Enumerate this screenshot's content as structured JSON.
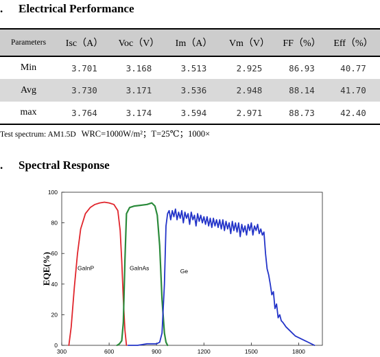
{
  "sections": {
    "electrical": {
      "bullet": ".",
      "title": "Electrical Performance"
    },
    "spectral": {
      "bullet": ".",
      "title": "Spectral Response"
    }
  },
  "table": {
    "headers": [
      "Parameters",
      "Isc（A）",
      "Voc（V）",
      "Im（A）",
      "Vm（V）",
      "FF（%）",
      "Eff（%）"
    ],
    "rows": [
      {
        "label": "Min",
        "values": [
          "3.701",
          "3.168",
          "3.513",
          "2.925",
          "86.93",
          "40.77"
        ]
      },
      {
        "label": "Avg",
        "values": [
          "3.730",
          "3.171",
          "3.536",
          "2.948",
          "88.14",
          "41.70"
        ]
      },
      {
        "label": "max",
        "values": [
          "3.764",
          "3.174",
          "3.594",
          "2.971",
          "88.73",
          "42.40"
        ]
      }
    ]
  },
  "note": {
    "spectrum": "Test spectrum: AM1.5D",
    "conditions": "WRC=1000W/m²；T=25℃；1000×"
  },
  "chart_data": {
    "type": "line",
    "title": "",
    "xlabel": "",
    "ylabel": "EQE(%)",
    "xlim": [
      300,
      1950
    ],
    "ylim": [
      0,
      100
    ],
    "xticks": [
      300,
      600,
      900,
      1200,
      1500,
      1800
    ],
    "yticks": [
      0,
      20,
      40,
      60,
      80,
      100
    ],
    "grid": false,
    "series": [
      {
        "name": "GaInP",
        "color": "#e0242b",
        "label_at": [
          400,
          49
        ],
        "x": [
          345,
          360,
          380,
          400,
          420,
          450,
          480,
          510,
          540,
          570,
          600,
          630,
          655,
          670,
          680,
          690,
          700,
          710
        ],
        "y": [
          0,
          12,
          38,
          60,
          76,
          86,
          90,
          92,
          93,
          93.5,
          93,
          92,
          88,
          75,
          55,
          30,
          10,
          0
        ]
      },
      {
        "name": "GaInAs",
        "color": "#2a8a3a",
        "label_at": [
          730,
          49
        ],
        "x": [
          650,
          665,
          680,
          690,
          700,
          710,
          730,
          760,
          800,
          840,
          870,
          890,
          905,
          920,
          935,
          950,
          960,
          970
        ],
        "y": [
          0,
          1,
          3,
          15,
          55,
          86,
          90,
          91,
          91.5,
          92,
          93,
          91,
          85,
          65,
          30,
          8,
          2,
          0
        ],
        "stroke_width": 2.2
      },
      {
        "name": "Ge",
        "color": "#2233c8",
        "label_at": [
          1050,
          47
        ],
        "x": [
          720,
          780,
          840,
          900,
          920,
          935,
          950,
          960,
          970,
          980,
          990,
          1000,
          1010,
          1020,
          1030,
          1040,
          1050,
          1060,
          1070,
          1080,
          1090,
          1100,
          1110,
          1120,
          1130,
          1140,
          1150,
          1160,
          1170,
          1180,
          1190,
          1200,
          1210,
          1220,
          1230,
          1240,
          1250,
          1260,
          1270,
          1280,
          1290,
          1300,
          1310,
          1320,
          1330,
          1340,
          1350,
          1360,
          1370,
          1380,
          1390,
          1400,
          1410,
          1420,
          1430,
          1440,
          1450,
          1460,
          1470,
          1480,
          1490,
          1500,
          1510,
          1520,
          1530,
          1540,
          1550,
          1560,
          1570,
          1580,
          1590,
          1600,
          1610,
          1620,
          1630,
          1640,
          1650,
          1660,
          1670,
          1680,
          1690,
          1700,
          1720,
          1740,
          1760,
          1780,
          1800,
          1820,
          1840,
          1860,
          1880,
          1900
        ],
        "y": [
          0,
          0,
          1,
          1,
          2,
          8,
          40,
          78,
          86,
          88,
          82,
          88,
          84,
          89,
          82,
          87,
          83,
          88,
          80,
          87,
          83,
          86,
          79,
          87,
          82,
          85,
          78,
          86,
          81,
          85,
          80,
          84,
          79,
          84,
          78,
          83,
          77,
          83,
          78,
          82,
          77,
          82,
          76,
          82,
          75,
          81,
          76,
          80,
          73,
          81,
          75,
          80,
          74,
          80,
          71,
          79,
          74,
          78,
          72,
          79,
          75,
          80,
          72,
          78,
          75,
          79,
          73,
          76,
          72,
          74,
          60,
          50,
          46,
          40,
          33,
          35,
          24,
          27,
          18,
          20,
          16,
          15,
          12,
          10,
          8,
          6,
          5,
          4,
          3,
          2,
          1,
          0
        ]
      }
    ]
  }
}
